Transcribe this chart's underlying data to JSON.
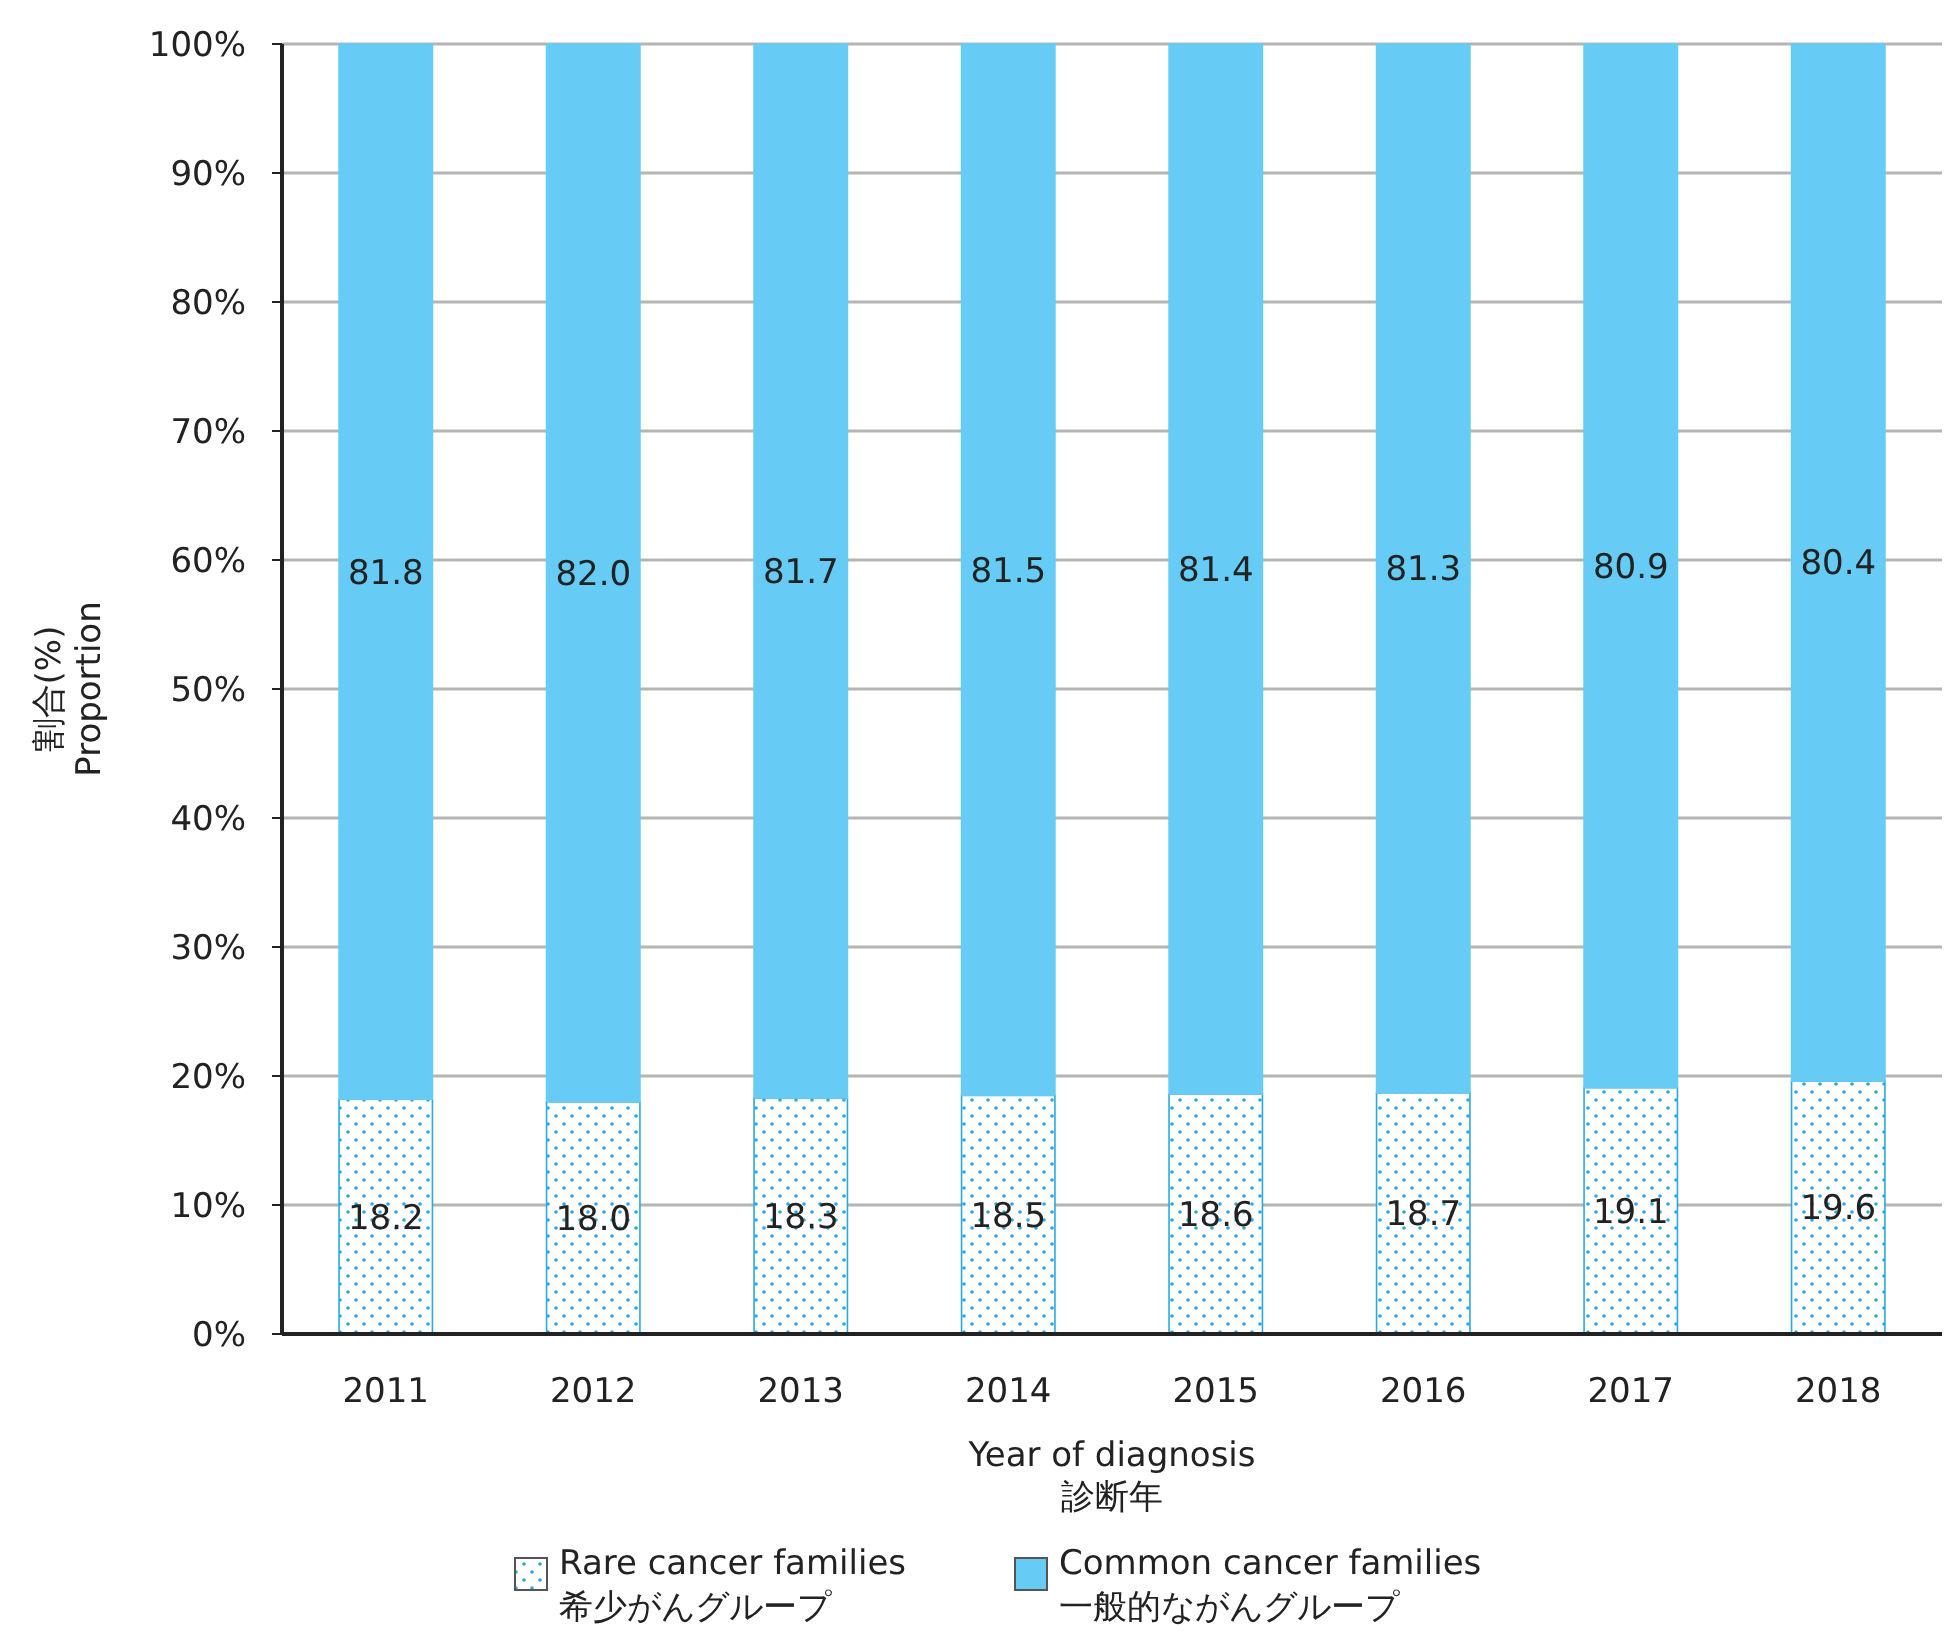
{
  "chart_data": {
    "type": "bar",
    "stacked": true,
    "categories": [
      "2011",
      "2012",
      "2013",
      "2014",
      "2015",
      "2016",
      "2017",
      "2018"
    ],
    "series": [
      {
        "name": "Rare cancer families\n希少がんグループ",
        "color": "#29a9e1",
        "values": [
          18.2,
          18.0,
          18.3,
          18.5,
          18.6,
          18.7,
          19.1,
          19.6
        ],
        "value_labels": [
          "18.2",
          "18.0",
          "18.3",
          "18.5",
          "18.6",
          "18.7",
          "19.1",
          "19.6"
        ]
      },
      {
        "name": "Common cancer families\n一般的ながんグループ",
        "color": "#66ccf5",
        "values": [
          81.8,
          82.0,
          81.7,
          81.5,
          81.4,
          81.3,
          80.9,
          80.4
        ],
        "value_labels": [
          "81.8",
          "82.0",
          "81.7",
          "81.5",
          "81.4",
          "81.3",
          "80.9",
          "80.4"
        ]
      }
    ],
    "ylim": [
      0,
      100
    ],
    "yticks": [
      {
        "value": 0,
        "label": "0%"
      },
      {
        "value": 10,
        "label": "10%"
      },
      {
        "value": 20,
        "label": "20%"
      },
      {
        "value": 30,
        "label": "30%"
      },
      {
        "value": 40,
        "label": "40%"
      },
      {
        "value": 50,
        "label": "50%"
      },
      {
        "value": 60,
        "label": "60%"
      },
      {
        "value": 70,
        "label": "70%"
      },
      {
        "value": 80,
        "label": "80%"
      },
      {
        "value": 90,
        "label": "90%"
      },
      {
        "value": 100,
        "label": "100%"
      }
    ],
    "xlabel": "Year of diagnosis\n診断年",
    "ylabel": "割合(%)\nProportion",
    "grid": "y",
    "legend": "bottom"
  }
}
